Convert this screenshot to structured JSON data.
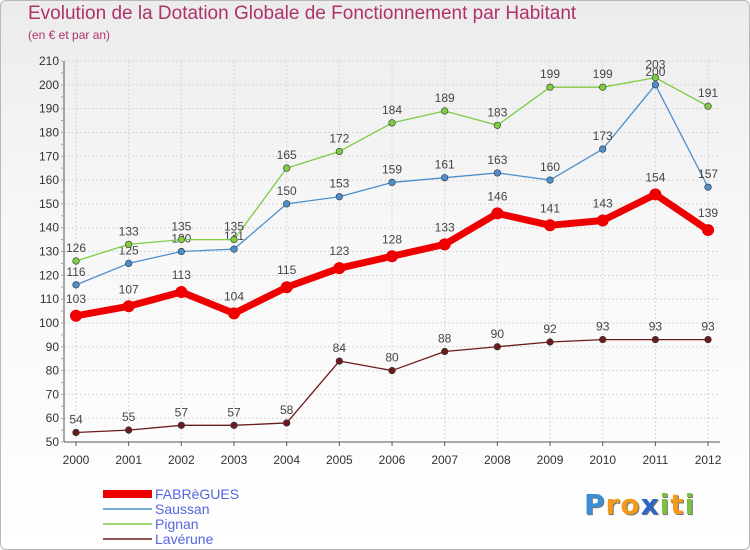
{
  "chart_data": {
    "type": "line",
    "title": "Evolution de la Dotation Globale de Fonctionnement par Habitant",
    "subtitle": "(en € et par an)",
    "categories": [
      "2000",
      "2001",
      "2002",
      "2003",
      "2004",
      "2005",
      "2006",
      "2007",
      "2008",
      "2009",
      "2010",
      "2011",
      "2012"
    ],
    "ylim": [
      50,
      210
    ],
    "yticks": [
      50,
      60,
      70,
      80,
      90,
      100,
      110,
      120,
      130,
      140,
      150,
      160,
      170,
      180,
      190,
      200,
      210
    ],
    "grid": true,
    "legend_position": "bottom-left",
    "series": [
      {
        "name": "Lavérune",
        "color": "#6b1b1b",
        "values": [
          54,
          55,
          57,
          57,
          58,
          84,
          80,
          88,
          90,
          92,
          93,
          93,
          93
        ]
      },
      {
        "name": "Saussan",
        "color": "#4d8fcc",
        "values": [
          116,
          125,
          130,
          131,
          150,
          153,
          159,
          161,
          163,
          160,
          173,
          200,
          157
        ]
      },
      {
        "name": "Pignan",
        "color": "#7dcc44",
        "values": [
          126,
          133,
          135,
          135,
          165,
          172,
          184,
          189,
          183,
          199,
          199,
          203,
          191
        ]
      },
      {
        "name": "FABRèGUES",
        "color": "#ee0000",
        "values": [
          103,
          107,
          113,
          104,
          115,
          123,
          128,
          133,
          146,
          141,
          143,
          154,
          139
        ]
      }
    ],
    "legend_order": [
      "FABRèGUES",
      "Saussan",
      "Pignan",
      "Lavérune"
    ]
  },
  "brand": {
    "letters": [
      "P",
      "r",
      "o",
      "x",
      "i",
      "t",
      "i"
    ],
    "colors": [
      "#3b8ed4",
      "#f19a1c",
      "#f19a1c",
      "#2c66c4",
      "#7cc142",
      "#f19a1c",
      "#7cc142"
    ]
  }
}
